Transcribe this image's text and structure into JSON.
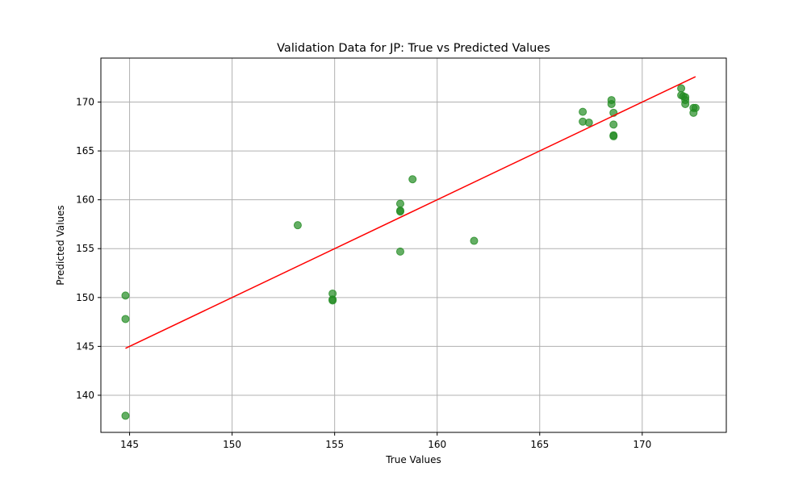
{
  "chart_data": {
    "type": "scatter",
    "title": "Validation Data for JP: True vs Predicted Values",
    "xlabel": "True Values",
    "ylabel": "Predicted Values",
    "xlim": [
      143.6,
      174.1
    ],
    "ylim": [
      136.2,
      174.5
    ],
    "xticks": [
      145,
      150,
      155,
      160,
      165,
      170
    ],
    "yticks": [
      140,
      145,
      150,
      155,
      160,
      165,
      170
    ],
    "grid": true,
    "points_color": "#228b22",
    "line_color": "#ff0000",
    "points": [
      {
        "x": 144.8,
        "y": 150.2
      },
      {
        "x": 144.8,
        "y": 147.8
      },
      {
        "x": 144.8,
        "y": 137.9
      },
      {
        "x": 153.2,
        "y": 157.4
      },
      {
        "x": 154.9,
        "y": 150.4
      },
      {
        "x": 154.9,
        "y": 149.8
      },
      {
        "x": 154.9,
        "y": 149.7
      },
      {
        "x": 158.2,
        "y": 159.6
      },
      {
        "x": 158.2,
        "y": 158.9
      },
      {
        "x": 158.2,
        "y": 158.8
      },
      {
        "x": 158.2,
        "y": 154.7
      },
      {
        "x": 158.8,
        "y": 162.1
      },
      {
        "x": 161.8,
        "y": 155.8
      },
      {
        "x": 167.1,
        "y": 169.0
      },
      {
        "x": 167.1,
        "y": 168.0
      },
      {
        "x": 167.4,
        "y": 167.9
      },
      {
        "x": 168.5,
        "y": 170.2
      },
      {
        "x": 168.5,
        "y": 169.8
      },
      {
        "x": 168.6,
        "y": 168.9
      },
      {
        "x": 168.6,
        "y": 167.7
      },
      {
        "x": 168.6,
        "y": 166.6
      },
      {
        "x": 168.6,
        "y": 166.5
      },
      {
        "x": 171.9,
        "y": 171.4
      },
      {
        "x": 171.9,
        "y": 170.7
      },
      {
        "x": 172.0,
        "y": 170.6
      },
      {
        "x": 172.1,
        "y": 170.5
      },
      {
        "x": 172.1,
        "y": 170.2
      },
      {
        "x": 172.1,
        "y": 169.8
      },
      {
        "x": 172.5,
        "y": 169.4
      },
      {
        "x": 172.6,
        "y": 169.4
      },
      {
        "x": 172.5,
        "y": 168.9
      }
    ],
    "line": [
      {
        "x": 144.8,
        "y": 144.8
      },
      {
        "x": 172.6,
        "y": 172.6
      }
    ]
  }
}
